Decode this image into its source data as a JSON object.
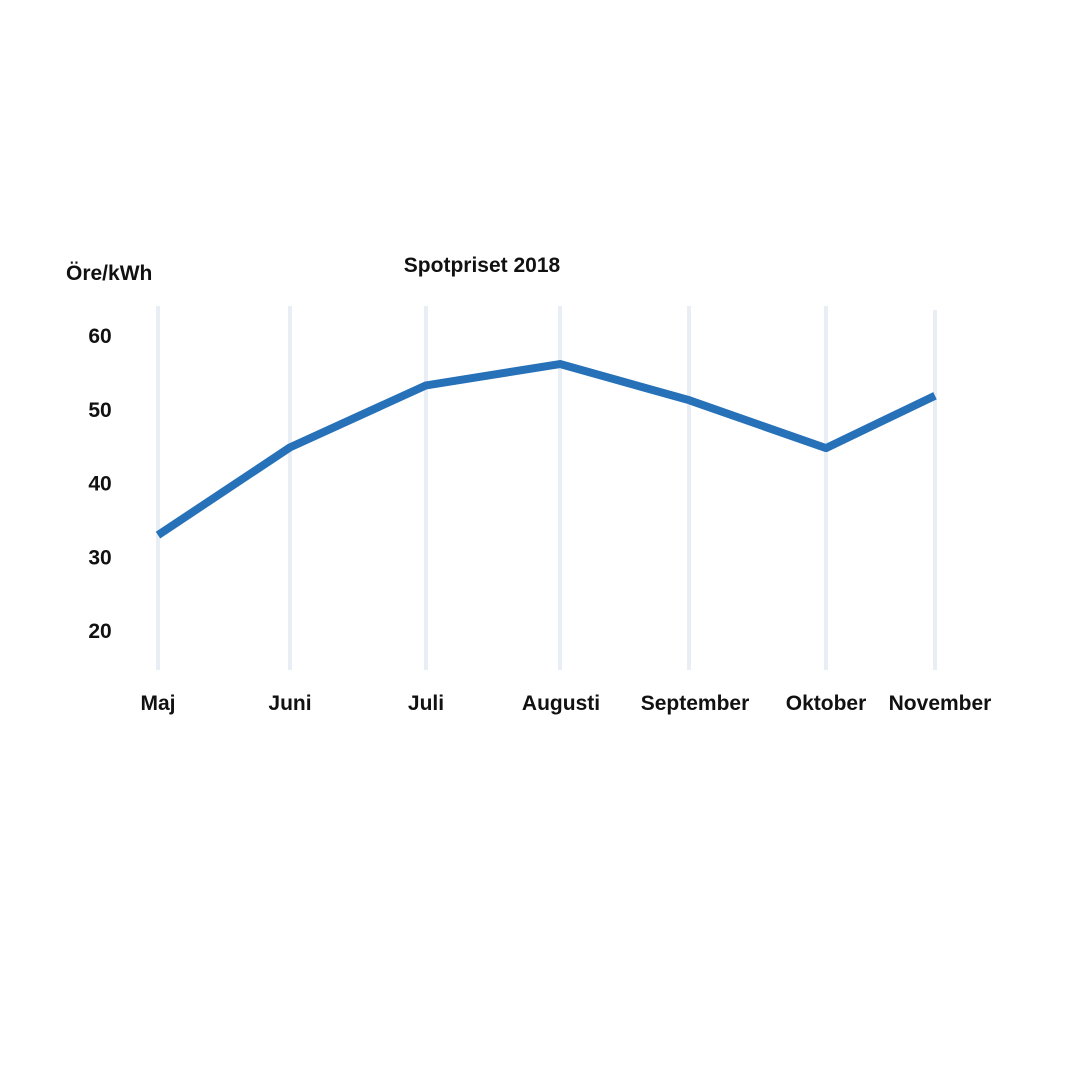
{
  "chart_data": {
    "type": "line",
    "title": "Spotpriset 2018",
    "xlabel": "",
    "ylabel": "Öre/kWh",
    "categories": [
      "Maj",
      "Juni",
      "Juli",
      "Augusti",
      "September",
      "Oktober",
      "November"
    ],
    "series": [
      {
        "values": [
          33,
          44.9,
          53.3,
          56.2,
          51.3,
          44.8,
          51.9
        ]
      }
    ],
    "yticks": [
      20,
      30,
      40,
      50,
      60
    ],
    "ylim": [
      15,
      64
    ],
    "grid": "vertical",
    "legend": "none",
    "colors": {
      "line": "#2671b8",
      "grid": "#e8eef4",
      "text": "#111111"
    }
  }
}
